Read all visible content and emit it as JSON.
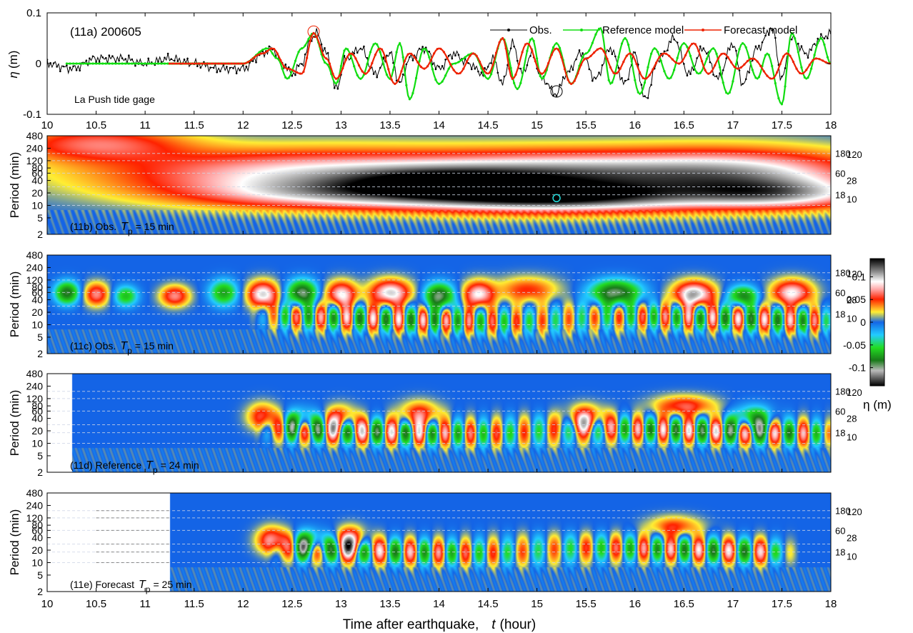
{
  "figure": {
    "xlabel_main": "Time after earthquake,",
    "xlabel_var": "t",
    "xlabel_unit": "(hour)",
    "x_ticks": [
      "10",
      "10.5",
      "11",
      "11.5",
      "12",
      "12.5",
      "13",
      "13.5",
      "14",
      "14.5",
      "15",
      "15.5",
      "16",
      "16.5",
      "17",
      "17.5",
      "18"
    ]
  },
  "colorbar": {
    "label": "η (m)",
    "ticks": [
      "0.1",
      "0.05",
      "0",
      "-0.05",
      "-0.1"
    ],
    "tick_values": [
      0.1,
      0.05,
      0,
      -0.05,
      -0.1
    ],
    "range": [
      -0.14,
      0.14
    ]
  },
  "panel_a": {
    "title": "(11a) 200605",
    "station": "La Push tide gage",
    "ylabel_var": "η",
    "ylabel_unit": "(m)",
    "y_ticks": [
      "0.1",
      "0",
      "-0.1"
    ],
    "legend": [
      "Obs.",
      "Reference model",
      "Forecast model"
    ]
  },
  "spectrogram_axis": {
    "ylabel": "Period (min)",
    "y_ticks": [
      "480",
      "240",
      "120",
      "80",
      "60",
      "40",
      "20",
      "10",
      "5",
      "2"
    ],
    "y_tick_values": [
      480,
      240,
      120,
      80,
      60,
      40,
      20,
      10,
      5,
      2
    ],
    "right_labels": [
      "180",
      "120",
      "60",
      "28",
      "18",
      "10"
    ],
    "right_values": [
      180,
      120,
      60,
      28,
      18,
      10
    ]
  },
  "panel_b": {
    "label": "(11b) Obs.",
    "tp_var": "T",
    "tp_sub": "p",
    "tp_value": "= 15 min"
  },
  "panel_c": {
    "label": "(11c) Obs.",
    "tp_var": "T",
    "tp_sub": "p",
    "tp_value": "= 15 min"
  },
  "panel_d": {
    "label": "(11d) Reference",
    "tp_var": "T",
    "tp_sub": "p",
    "tp_value": "= 24 min"
  },
  "panel_e": {
    "label": "(11e) Forecast",
    "tp_var": "T",
    "tp_sub": "p",
    "tp_value": "= 25 min"
  },
  "chart_data": [
    {
      "type": "line",
      "xlim": [
        10,
        18
      ],
      "ylim": [
        -0.1,
        0.1
      ],
      "series": [
        {
          "name": "Obs.",
          "color": "#000000",
          "x": [
            10.0,
            10.25,
            10.5,
            10.75,
            11.0,
            11.25,
            11.5,
            11.75,
            12.0,
            12.2,
            12.3,
            12.4,
            12.5,
            12.6,
            12.7,
            12.75,
            12.85,
            12.95,
            13.05,
            13.2,
            13.35,
            13.5,
            13.6,
            13.7,
            13.85,
            14.0,
            14.15,
            14.3,
            14.45,
            14.55,
            14.65,
            14.75,
            14.85,
            14.95,
            15.05,
            15.2,
            15.3,
            15.45,
            15.6,
            15.75,
            15.9,
            16.0,
            16.1,
            16.25,
            16.4,
            16.55,
            16.7,
            16.85,
            17.0,
            17.1,
            17.25,
            17.4,
            17.5,
            17.6,
            17.75,
            17.9,
            18.0
          ],
          "y": [
            0.0,
            -0.01,
            0.01,
            0.01,
            0.0,
            0.01,
            0.0,
            -0.01,
            -0.01,
            0.02,
            0.03,
            0.0,
            -0.02,
            0.0,
            0.05,
            0.06,
            0.02,
            -0.05,
            0.01,
            0.03,
            -0.02,
            0.02,
            -0.04,
            0.01,
            0.03,
            -0.01,
            0.02,
            0.0,
            -0.02,
            0.01,
            -0.04,
            0.04,
            -0.02,
            0.02,
            -0.03,
            -0.06,
            -0.02,
            0.02,
            -0.03,
            0.03,
            -0.04,
            0.02,
            -0.07,
            0.01,
            0.05,
            -0.02,
            0.03,
            -0.03,
            0.04,
            -0.04,
            0.03,
            0.07,
            -0.03,
            0.05,
            0.02,
            0.05,
            0.06
          ]
        },
        {
          "name": "Reference model",
          "color": "#11dd11",
          "x": [
            10.2,
            11.2,
            12.0,
            12.25,
            12.35,
            12.45,
            12.6,
            12.72,
            12.85,
            12.95,
            13.05,
            13.2,
            13.35,
            13.5,
            13.6,
            13.7,
            13.85,
            14.0,
            14.15,
            14.35,
            14.5,
            14.65,
            14.8,
            14.95,
            15.05,
            15.2,
            15.35,
            15.5,
            15.65,
            15.75,
            15.9,
            16.05,
            16.2,
            16.35,
            16.5,
            16.65,
            16.8,
            16.95,
            17.1,
            17.25,
            17.35,
            17.5,
            17.6,
            17.75,
            17.9,
            18.0
          ],
          "y": [
            0.0,
            0.0,
            0.0,
            0.03,
            0.01,
            -0.03,
            0.03,
            0.06,
            0.0,
            -0.04,
            0.03,
            -0.03,
            0.04,
            -0.03,
            0.04,
            -0.07,
            0.03,
            -0.04,
            0.0,
            0.02,
            -0.03,
            0.05,
            -0.05,
            0.05,
            -0.03,
            0.04,
            -0.04,
            0.02,
            0.07,
            -0.04,
            0.05,
            -0.06,
            0.03,
            -0.03,
            0.04,
            -0.02,
            0.03,
            -0.06,
            0.04,
            -0.03,
            0.02,
            -0.08,
            0.06,
            -0.03,
            0.05,
            0.0
          ]
        },
        {
          "name": "Forecast model",
          "color": "#ee2200",
          "x": [
            11.25,
            12.0,
            12.2,
            12.3,
            12.45,
            12.6,
            12.72,
            12.85,
            12.95,
            13.1,
            13.25,
            13.4,
            13.55,
            13.7,
            13.85,
            14.0,
            14.2,
            14.35,
            14.5,
            14.65,
            14.75,
            14.9,
            15.05,
            15.2,
            15.35,
            15.5,
            15.65,
            15.8,
            15.95,
            16.1,
            16.3,
            16.45,
            16.6,
            16.75,
            16.9,
            17.05,
            17.2,
            17.4,
            17.55,
            17.7,
            17.85,
            18.0
          ],
          "y": [
            0.0,
            0.0,
            0.02,
            0.03,
            -0.01,
            -0.02,
            0.06,
            0.01,
            -0.03,
            0.02,
            -0.02,
            0.03,
            -0.04,
            0.02,
            -0.01,
            0.03,
            -0.02,
            0.02,
            -0.02,
            0.05,
            -0.03,
            0.04,
            -0.02,
            0.03,
            -0.04,
            0.01,
            0.03,
            -0.02,
            0.02,
            -0.03,
            0.02,
            0.0,
            0.04,
            -0.02,
            0.02,
            -0.01,
            0.01,
            -0.03,
            0.02,
            -0.02,
            0.01,
            0.0
          ]
        }
      ],
      "annotations": [
        {
          "type": "circle",
          "x": 12.72,
          "y": 0.063,
          "color": "#ee2200"
        },
        {
          "type": "circle",
          "x": 15.2,
          "y": -0.055,
          "color": "#000000"
        }
      ]
    },
    {
      "type": "heatmap",
      "panel": "(11b)",
      "xlim": [
        10,
        18
      ],
      "ylim_period_min": [
        2,
        480
      ],
      "valid_from_hour": 10,
      "blobs": [
        {
          "t": 10.5,
          "p": 320,
          "dt": 0.9,
          "dp": 0.35,
          "v": 0.06
        },
        {
          "t": 12.8,
          "p": 60,
          "dt": 2.2,
          "dp": 0.5,
          "v": 0.09
        },
        {
          "t": 15.2,
          "p": 60,
          "dt": 1.3,
          "dp": 0.45,
          "v": 0.07
        },
        {
          "t": 17.0,
          "p": 60,
          "dt": 1.4,
          "dp": 0.5,
          "v": 0.1
        },
        {
          "t": 13.0,
          "p": 18,
          "dt": 1.6,
          "dp": 0.3,
          "v": 0.06
        },
        {
          "t": 15.2,
          "p": 15,
          "dt": 1.5,
          "dp": 0.3,
          "v": 0.11
        },
        {
          "t": 17.5,
          "p": 18,
          "dt": 1.0,
          "dp": 0.3,
          "v": 0.07
        },
        {
          "t": 14.0,
          "p": 40,
          "dt": 1.0,
          "dp": 0.3,
          "v": 0.05
        }
      ],
      "marker": {
        "t": 15.2,
        "p": 15
      }
    },
    {
      "type": "heatmap",
      "panel": "(11c)",
      "xlim": [
        10,
        18
      ],
      "valid_from_hour": 10,
      "blobs": [
        {
          "t": 10.2,
          "p": 60,
          "dt": 0.12,
          "dp": 0.22,
          "v": -0.09
        },
        {
          "t": 10.5,
          "p": 55,
          "dt": 0.12,
          "dp": 0.22,
          "v": 0.07
        },
        {
          "t": 10.8,
          "p": 50,
          "dt": 0.12,
          "dp": 0.2,
          "v": -0.06
        },
        {
          "t": 11.3,
          "p": 50,
          "dt": 0.14,
          "dp": 0.2,
          "v": 0.07
        },
        {
          "t": 11.8,
          "p": 60,
          "dt": 0.14,
          "dp": 0.25,
          "v": -0.07
        },
        {
          "t": 12.2,
          "p": 55,
          "dt": 0.15,
          "dp": 0.25,
          "v": 0.1
        },
        {
          "t": 12.6,
          "p": 60,
          "dt": 0.15,
          "dp": 0.25,
          "v": -0.1
        },
        {
          "t": 13.0,
          "p": 55,
          "dt": 0.15,
          "dp": 0.25,
          "v": 0.09
        },
        {
          "t": 13.5,
          "p": 60,
          "dt": 0.2,
          "dp": 0.25,
          "v": 0.1
        },
        {
          "t": 14.0,
          "p": 50,
          "dt": 0.15,
          "dp": 0.25,
          "v": -0.1
        },
        {
          "t": 14.4,
          "p": 55,
          "dt": 0.15,
          "dp": 0.25,
          "v": 0.09
        },
        {
          "t": 14.9,
          "p": 70,
          "dt": 0.3,
          "dp": 0.25,
          "v": 0.05
        },
        {
          "t": 15.8,
          "p": 60,
          "dt": 0.25,
          "dp": 0.25,
          "v": -0.1
        },
        {
          "t": 16.6,
          "p": 55,
          "dt": 0.2,
          "dp": 0.25,
          "v": 0.11
        },
        {
          "t": 17.1,
          "p": 50,
          "dt": 0.15,
          "dp": 0.2,
          "v": -0.08
        },
        {
          "t": 17.6,
          "p": 60,
          "dt": 0.2,
          "dp": 0.25,
          "v": 0.09
        }
      ],
      "band": {
        "t_from": 12.25,
        "t_to": 18,
        "p": 14,
        "spacing_hr": 0.125,
        "amp": 0.09
      }
    },
    {
      "type": "heatmap",
      "panel": "(11d)",
      "xlim": [
        10,
        18
      ],
      "valid_from_hour": 10.25,
      "blobs": [
        {
          "t": 12.2,
          "p": 45,
          "dt": 0.15,
          "dp": 0.25,
          "v": 0.06
        },
        {
          "t": 12.6,
          "p": 35,
          "dt": 0.15,
          "dp": 0.25,
          "v": -0.06
        },
        {
          "t": 13.0,
          "p": 40,
          "dt": 0.15,
          "dp": 0.25,
          "v": 0.06
        },
        {
          "t": 13.8,
          "p": 50,
          "dt": 0.2,
          "dp": 0.25,
          "v": 0.06
        },
        {
          "t": 15.5,
          "p": 40,
          "dt": 0.2,
          "dp": 0.25,
          "v": 0.07
        },
        {
          "t": 16.5,
          "p": 80,
          "dt": 0.3,
          "dp": 0.2,
          "v": 0.06
        },
        {
          "t": 17.2,
          "p": 40,
          "dt": 0.2,
          "dp": 0.25,
          "v": -0.07
        }
      ],
      "band": {
        "t_from": 12.3,
        "t_to": 18,
        "p": 20,
        "spacing_hr": 0.14,
        "amp": 0.1
      }
    },
    {
      "type": "heatmap",
      "panel": "(11e)",
      "xlim": [
        10,
        18
      ],
      "valid_from_hour": 11.25,
      "blobs": [
        {
          "t": 12.3,
          "p": 35,
          "dt": 0.15,
          "dp": 0.25,
          "v": 0.08
        },
        {
          "t": 12.7,
          "p": 30,
          "dt": 0.15,
          "dp": 0.25,
          "v": -0.08
        },
        {
          "t": 13.1,
          "p": 35,
          "dt": 0.15,
          "dp": 0.25,
          "v": 0.08
        },
        {
          "t": 16.4,
          "p": 75,
          "dt": 0.25,
          "dp": 0.2,
          "v": 0.05
        }
      ],
      "band": {
        "t_from": 12.4,
        "t_to": 17.5,
        "p": 20,
        "spacing_hr": 0.15,
        "amp": 0.09
      }
    }
  ]
}
